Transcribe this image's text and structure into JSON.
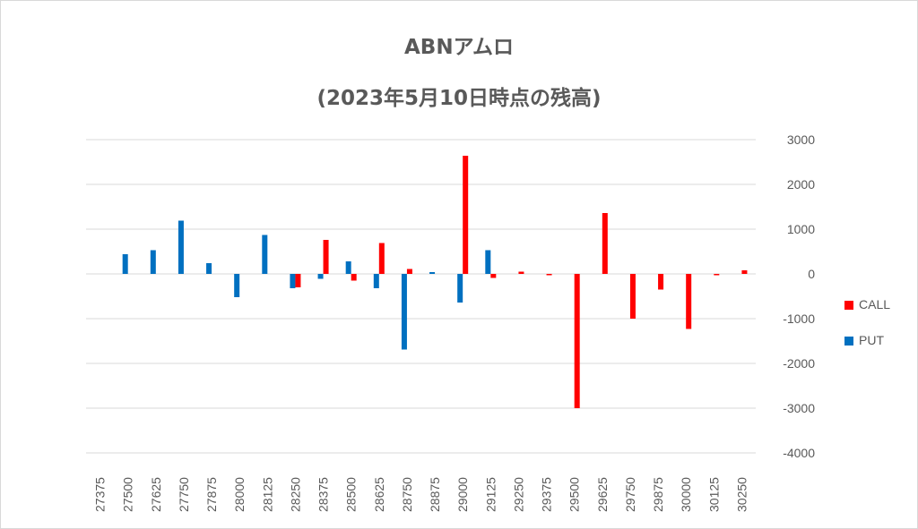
{
  "chart_data": {
    "type": "bar",
    "title": "ABNアムロ",
    "subtitle": "(2023年5月10日時点の残高)",
    "categories": [
      "27375",
      "27500",
      "27625",
      "27750",
      "27875",
      "28000",
      "28125",
      "28250",
      "28375",
      "28500",
      "28625",
      "28750",
      "28875",
      "29000",
      "29125",
      "29250",
      "29375",
      "29500",
      "29625",
      "29750",
      "29875",
      "30000",
      "30125",
      "30250"
    ],
    "series": [
      {
        "name": "CALL",
        "color": "#ff0000",
        "values": [
          0,
          0,
          0,
          0,
          0,
          0,
          0,
          -300,
          760,
          -150,
          690,
          110,
          0,
          2640,
          -90,
          50,
          -30,
          -3000,
          1360,
          -1000,
          -350,
          -1230,
          -30,
          80
        ]
      },
      {
        "name": "PUT",
        "color": "#0070c0",
        "values": [
          0,
          440,
          530,
          1190,
          240,
          -520,
          870,
          -320,
          -110,
          280,
          -320,
          -1690,
          40,
          -640,
          530,
          0,
          0,
          0,
          0,
          0,
          0,
          0,
          0,
          0
        ]
      }
    ],
    "y_ticks": [
      "3000",
      "2000",
      "1000",
      "0",
      "-1000",
      "-2000",
      "-3000",
      "-4000"
    ],
    "ylim": [
      -4000,
      3000
    ],
    "gridlines": true,
    "legend_position": "right",
    "y_axis_position": "right"
  }
}
